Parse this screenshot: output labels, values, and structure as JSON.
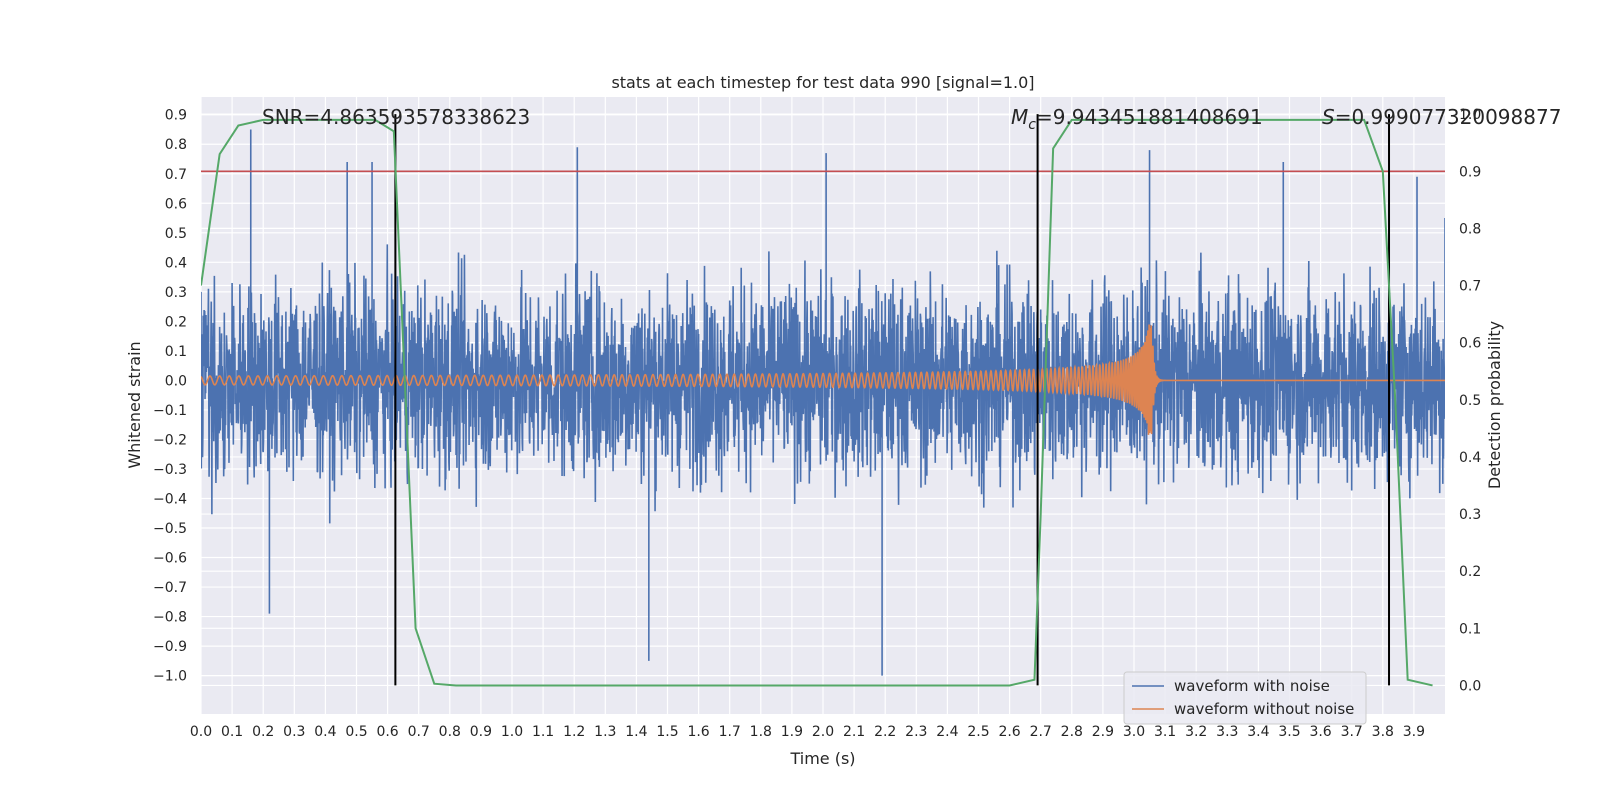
{
  "chart_data": {
    "type": "line",
    "title": "stats at each timestep for test data 990 [signal=1.0]",
    "xlabel": "Time (s)",
    "ylabel": "Whitened strain",
    "y2label": "Detection probability",
    "xlim": [
      0.0,
      4.0
    ],
    "ylim": [
      -1.13,
      0.96
    ],
    "y2lim": [
      -0.05,
      1.03
    ],
    "xticks": [
      "0.0",
      "0.1",
      "0.2",
      "0.3",
      "0.4",
      "0.5",
      "0.6",
      "0.7",
      "0.8",
      "0.9",
      "1.0",
      "1.1",
      "1.2",
      "1.3",
      "1.4",
      "1.5",
      "1.6",
      "1.7",
      "1.8",
      "1.9",
      "2.0",
      "2.1",
      "2.2",
      "2.3",
      "2.4",
      "2.5",
      "2.6",
      "2.7",
      "2.8",
      "2.9",
      "3.0",
      "3.1",
      "3.2",
      "3.3",
      "3.4",
      "3.5",
      "3.6",
      "3.7",
      "3.8",
      "3.9"
    ],
    "yticks": [
      "0.9",
      "0.8",
      "0.7",
      "0.6",
      "0.5",
      "0.4",
      "0.3",
      "0.2",
      "0.1",
      "0.0",
      "−0.1",
      "−0.2",
      "−0.3",
      "−0.4",
      "−0.5",
      "−0.6",
      "−0.7",
      "−0.8",
      "−0.9",
      "−1.0"
    ],
    "y2ticks": [
      "1.0",
      "0.9",
      "0.8",
      "0.7",
      "0.6",
      "0.5",
      "0.4",
      "0.3",
      "0.2",
      "0.1",
      "0.0"
    ],
    "grid": true,
    "legend_position": "lower-right",
    "colors": {
      "noisy": "#4c72b0",
      "clean": "#dd8452",
      "probability": "#55a868",
      "threshold": "#c44e52",
      "markers": "#000000",
      "background": "#eaeaf2",
      "grid": "#ffffff"
    },
    "series": [
      {
        "name": "waveform with noise",
        "kind": "noise",
        "amplitude_profile": [
          [
            0.0,
            0.3
          ],
          [
            0.16,
            0.85
          ],
          [
            0.22,
            -0.79
          ],
          [
            0.47,
            0.74
          ],
          [
            0.55,
            0.74
          ],
          [
            1.21,
            0.79
          ],
          [
            1.44,
            -0.95
          ],
          [
            2.01,
            0.77
          ],
          [
            2.19,
            -1.0
          ],
          [
            3.05,
            0.78
          ],
          [
            3.48,
            0.74
          ],
          [
            3.91,
            0.69
          ],
          [
            4.0,
            0.55
          ]
        ]
      },
      {
        "name": "waveform without noise",
        "kind": "chirp",
        "merger_time": 3.06,
        "peak_amplitude": 0.19
      },
      {
        "name": "",
        "kind": "probability",
        "axis": "right",
        "x": [
          0.0,
          0.06,
          0.12,
          0.2,
          0.3,
          0.4,
          0.5,
          0.56,
          0.62,
          0.65,
          0.69,
          0.75,
          0.82,
          1.0,
          1.5,
          2.0,
          2.4,
          2.6,
          2.68,
          2.7,
          2.74,
          2.8,
          2.9,
          3.2,
          3.5,
          3.74,
          3.8,
          3.84,
          3.88,
          3.96
        ],
        "y": [
          0.7,
          0.93,
          0.98,
          0.99,
          0.99,
          0.99,
          0.99,
          0.99,
          0.97,
          0.6,
          0.1,
          0.003,
          0.0,
          0.0,
          0.0,
          0.0,
          0.0,
          0.0,
          0.01,
          0.3,
          0.94,
          0.99,
          0.99,
          0.99,
          0.99,
          0.99,
          0.9,
          0.5,
          0.01,
          0.0
        ]
      }
    ],
    "threshold_y2": 0.9,
    "markers_x": [
      0.625,
      2.69,
      3.82
    ],
    "annotations": {
      "snr_text": "SNR=4.863593578338623",
      "mc_symbol": "M",
      "mc_sub": "c",
      "mc_value": "=9.943451881408691",
      "s_symbol": "S",
      "s_value": "=0.999077320098877"
    },
    "legend": [
      "waveform with noise",
      "waveform without noise"
    ]
  }
}
